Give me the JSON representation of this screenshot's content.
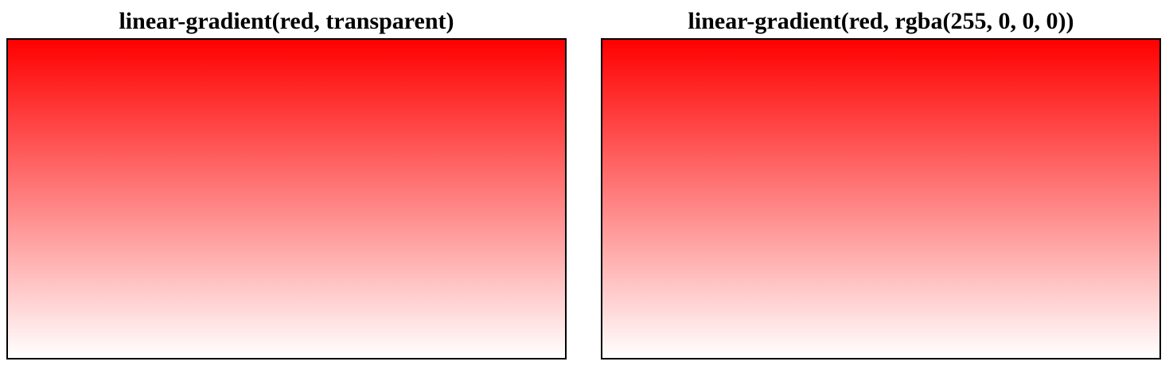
{
  "panels": [
    {
      "title": "linear-gradient(red, transparent)",
      "gradient_start": "#ff0000",
      "gradient_end": "rgba(255, 0, 0, 0)"
    },
    {
      "title": "linear-gradient(red, rgba(255, 0, 0, 0))",
      "gradient_start": "#ff0000",
      "gradient_end": "rgba(255, 0, 0, 0)"
    }
  ]
}
